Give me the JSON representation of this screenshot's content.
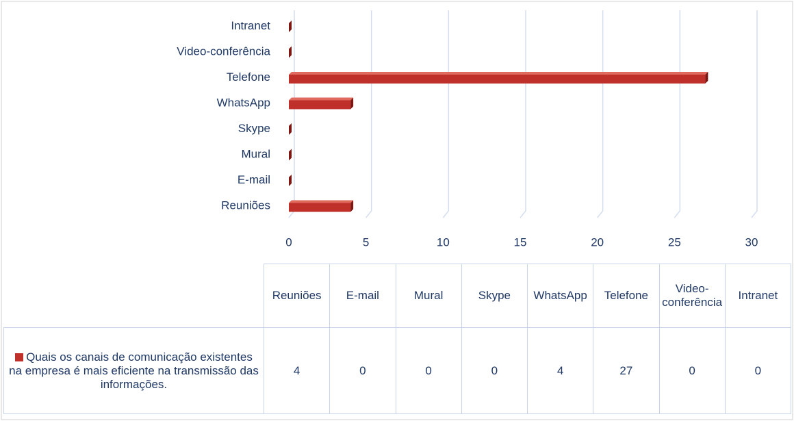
{
  "chart_data": {
    "type": "bar3d_horizontal",
    "categories": [
      "Reuniões",
      "E-mail",
      "Mural",
      "Skype",
      "WhatsApp",
      "Telefone",
      "Video-conferência",
      "Intranet"
    ],
    "series": [
      {
        "name": "Quais os canais de comunicação existentes na empresa é mais eficiente na transmissão das informações.",
        "color": "#c0302a",
        "values": [
          4,
          0,
          0,
          0,
          4,
          27,
          0,
          0
        ]
      }
    ],
    "xlim": [
      0,
      30
    ],
    "xticks": [
      0,
      5,
      10,
      15,
      20,
      25,
      30
    ],
    "grid": true,
    "data_table": true
  }
}
